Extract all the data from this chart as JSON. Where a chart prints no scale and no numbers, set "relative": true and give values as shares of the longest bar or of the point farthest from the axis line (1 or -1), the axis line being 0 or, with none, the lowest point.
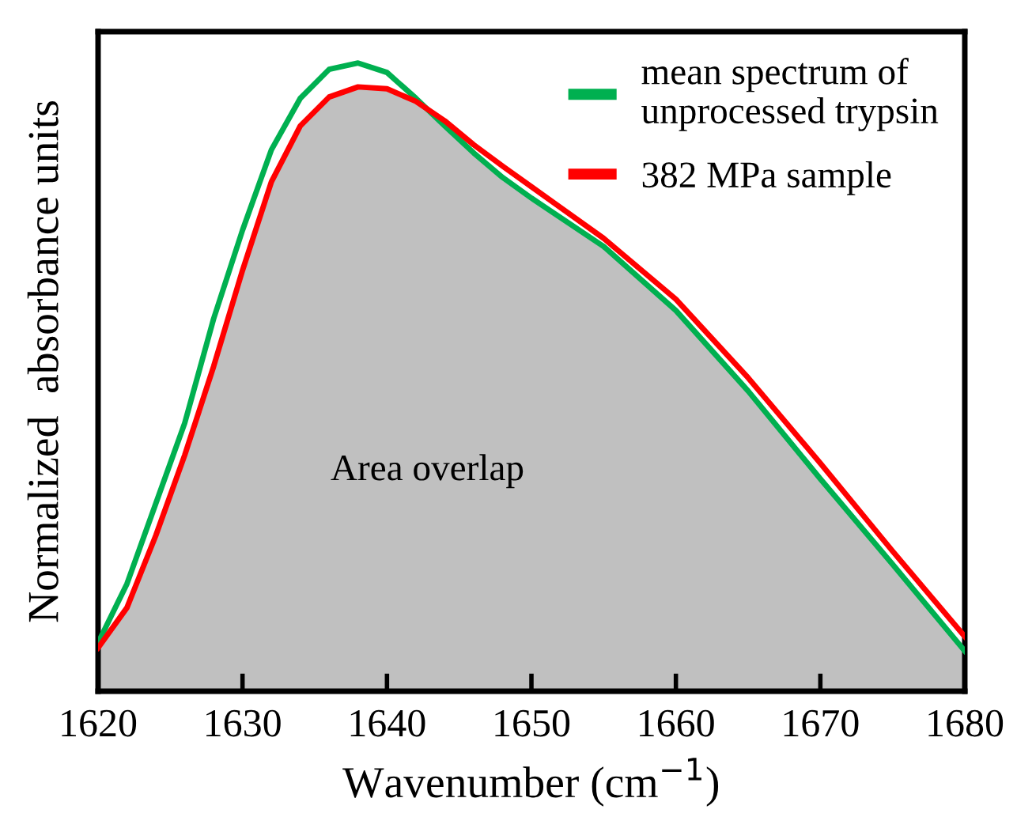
{
  "chart_data": {
    "type": "line",
    "xlabel": "Wavenumber (cm$^{−1}$)",
    "ylabel": "Normalized  absorbance units",
    "x": [
      1620,
      1622,
      1624,
      1626,
      1628,
      1630,
      1632,
      1634,
      1636,
      1638,
      1640,
      1642,
      1644,
      1646,
      1648,
      1650,
      1655,
      1660,
      1665,
      1670,
      1675,
      1680
    ],
    "xlim": [
      1620,
      1680
    ],
    "xticks": [
      1620,
      1630,
      1640,
      1650,
      1660,
      1670,
      1680
    ],
    "relative": true,
    "tick_labels": "x",
    "grid": false,
    "legend": "top right",
    "annotations": [
      "Area overlap"
    ],
    "series": [
      {
        "type": "area",
        "color": "#c0c0c0",
        "values": [
          0.069,
          0.133,
          0.248,
          0.376,
          0.517,
          0.67,
          0.811,
          0.9,
          0.946,
          0.962,
          0.959,
          0.939,
          0.9,
          0.857,
          0.818,
          0.785,
          0.708,
          0.606,
          0.478,
          0.338,
          0.202,
          0.064
        ]
      },
      {
        "name": "mean spectrum of\nunprocessed trypsin",
        "color": "#00b050",
        "values": [
          0.077,
          0.171,
          0.299,
          0.427,
          0.593,
          0.734,
          0.862,
          0.944,
          0.99,
          1,
          0.985,
          0.944,
          0.9,
          0.857,
          0.818,
          0.785,
          0.708,
          0.606,
          0.478,
          0.338,
          0.202,
          0.064
        ]
      },
      {
        "name": "382 MPa sample",
        "color": "#ff0000",
        "values": [
          0.069,
          0.133,
          0.248,
          0.376,
          0.517,
          0.67,
          0.811,
          0.9,
          0.946,
          0.962,
          0.959,
          0.939,
          0.908,
          0.87,
          0.836,
          0.803,
          0.721,
          0.624,
          0.499,
          0.363,
          0.223,
          0.087
        ]
      }
    ]
  }
}
